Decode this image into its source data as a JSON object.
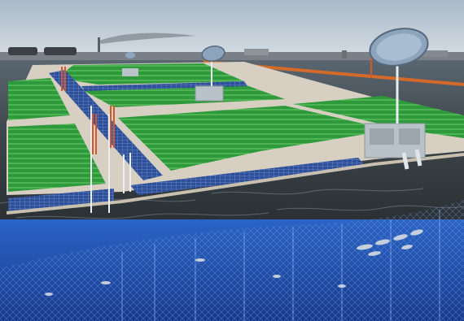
{
  "scene": {
    "kind": "rendered illustration",
    "elements": [
      "sky-with-haze",
      "distant-industrial-shoreline",
      "floating-platform-grid-with-green-crop-beds",
      "solar-panel-walkways",
      "satellite-dish-antennas",
      "equipment-housing-units",
      "orange-support-towers",
      "orange-boom-line",
      "rough-sea-surface",
      "underwater-net-cage",
      "fish-school"
    ],
    "colors": {
      "sky": "#b9c7d3",
      "sea": "#3b4448",
      "crop_green": "#2f9a3c",
      "solar_blue": "#2e4f9a",
      "walkway": "#d7d0c2",
      "tower_orange": "#d4562a",
      "underwater_blue": "#1f4fb0"
    }
  }
}
